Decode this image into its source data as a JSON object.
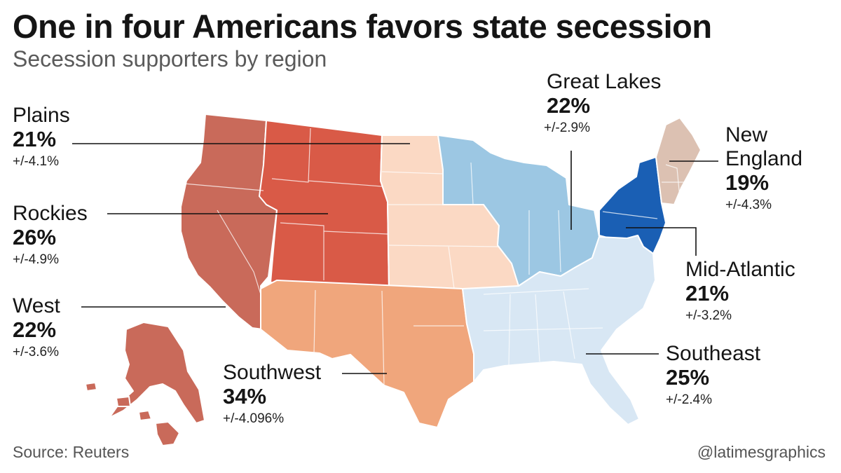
{
  "title": "One in four Americans favors state secession",
  "subtitle": "Secession supporters by region",
  "source": "Source: Reuters",
  "credit": "@latimesgraphics",
  "colors": {
    "west": "#c96a5a",
    "rockies": "#d95a47",
    "plains": "#fbd9c4",
    "southwest": "#f0a67c",
    "great_lakes": "#9cc7e3",
    "mid_atlantic": "#1a5fb4",
    "new_england": "#dcc1b2",
    "southeast": "#d8e7f4"
  },
  "regions": {
    "plains": {
      "name": "Plains",
      "pct": "21%",
      "moe": "+/-4.1%"
    },
    "rockies": {
      "name": "Rockies",
      "pct": "26%",
      "moe": "+/-4.9%"
    },
    "west": {
      "name": "West",
      "pct": "22%",
      "moe": "+/-3.6%"
    },
    "southwest": {
      "name": "Southwest",
      "pct": "34%",
      "moe": "+/-4.096%"
    },
    "great_lakes": {
      "name": "Great Lakes",
      "pct": "22%",
      "moe": "+/-2.9%"
    },
    "new_england": {
      "name1": "New",
      "name2": "England",
      "pct": "19%",
      "moe": "+/-4.3%"
    },
    "mid_atlantic": {
      "name": "Mid-Atlantic",
      "pct": "21%",
      "moe": "+/-3.2%"
    },
    "southeast": {
      "name": "Southeast",
      "pct": "25%",
      "moe": "+/-2.4%"
    }
  }
}
